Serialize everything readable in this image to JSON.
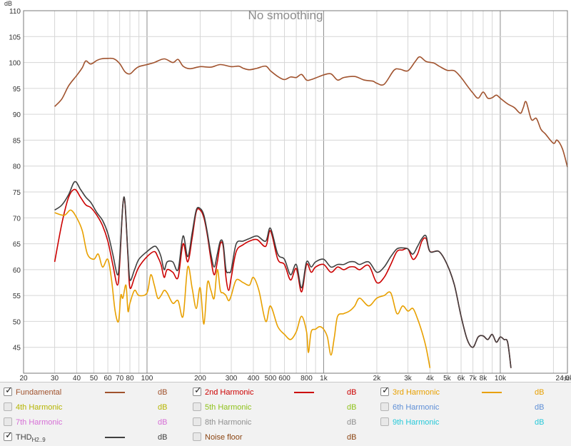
{
  "chart_data": {
    "type": "line",
    "title": "No smoothing",
    "y_unit": "dB",
    "x_unit": "Hz",
    "x_scale": "log",
    "xlim": [
      20,
      24000
    ],
    "ylim": [
      40,
      110
    ],
    "grid": true,
    "x_ticks": [
      {
        "value": 20,
        "label": "20"
      },
      {
        "value": 30,
        "label": "30"
      },
      {
        "value": 40,
        "label": "40"
      },
      {
        "value": 50,
        "label": "50"
      },
      {
        "value": 60,
        "label": "60"
      },
      {
        "value": 70,
        "label": "70"
      },
      {
        "value": 80,
        "label": "80"
      },
      {
        "value": 100,
        "label": "100"
      },
      {
        "value": 200,
        "label": "200"
      },
      {
        "value": 300,
        "label": "300"
      },
      {
        "value": 400,
        "label": "400"
      },
      {
        "value": 500,
        "label": "500"
      },
      {
        "value": 600,
        "label": "600"
      },
      {
        "value": 800,
        "label": "800"
      },
      {
        "value": 1000,
        "label": "1k"
      },
      {
        "value": 2000,
        "label": "2k"
      },
      {
        "value": 3000,
        "label": "3k"
      },
      {
        "value": 4000,
        "label": "4k"
      },
      {
        "value": 5000,
        "label": "5k"
      },
      {
        "value": 6000,
        "label": "6k"
      },
      {
        "value": 7000,
        "label": "7k"
      },
      {
        "value": 8000,
        "label": "8k"
      },
      {
        "value": 10000,
        "label": "10k"
      },
      {
        "value": 24000,
        "label": "24,0k"
      }
    ],
    "y_ticks": [
      45,
      50,
      55,
      60,
      65,
      70,
      75,
      80,
      85,
      90,
      95,
      100,
      105,
      110
    ],
    "series": [
      {
        "name": "Fundamental",
        "color": "#a0522d",
        "x": [
          30,
          33,
          36,
          40,
          43,
          45,
          48,
          52,
          55,
          60,
          65,
          70,
          75,
          80,
          85,
          90,
          100,
          110,
          125,
          140,
          150,
          160,
          175,
          200,
          230,
          260,
          300,
          330,
          350,
          380,
          420,
          470,
          500,
          550,
          600,
          650,
          700,
          750,
          800,
          850,
          900,
          1000,
          1100,
          1200,
          1300,
          1500,
          1700,
          1900,
          2000,
          2200,
          2500,
          2700,
          3000,
          3300,
          3500,
          3800,
          4200,
          4500,
          5000,
          5500,
          6000,
          6500,
          7000,
          7500,
          8000,
          8500,
          9000,
          9500,
          10000,
          11000,
          12000,
          13000,
          13500,
          14000,
          15000,
          16000,
          17000,
          18000,
          20000,
          21000,
          22500,
          24000
        ],
        "values": [
          91.5,
          93,
          95.5,
          97.5,
          99,
          100.3,
          99.7,
          100.4,
          100.7,
          100.8,
          100.7,
          99.8,
          98.2,
          97.8,
          98.6,
          99.2,
          99.6,
          100,
          100.7,
          100,
          100.6,
          99.3,
          98.8,
          99.2,
          99.1,
          99.6,
          99.2,
          99.3,
          98.9,
          98.6,
          98.9,
          99.3,
          98.4,
          97.3,
          96.7,
          97.2,
          97.1,
          97.7,
          96.6,
          96.7,
          97,
          97.6,
          97.8,
          96.6,
          97.1,
          97.3,
          96.6,
          96.4,
          96,
          95.8,
          98.5,
          98.7,
          98.4,
          100.2,
          101.1,
          100.2,
          99.9,
          99.3,
          98.5,
          98.4,
          97.1,
          95.5,
          94.1,
          93.1,
          94.3,
          93.1,
          93.2,
          93.7,
          93.1,
          92,
          91.3,
          90.2,
          91.3,
          92.4,
          89,
          89.2,
          87.1,
          86.2,
          84.4,
          85,
          83.3,
          79.8
        ]
      },
      {
        "name": "2nd Harmonic",
        "color": "#cc0000",
        "x": [
          30,
          33,
          36,
          39,
          42,
          45,
          48,
          52,
          56,
          60,
          64,
          68,
          70,
          73,
          75,
          78,
          80,
          85,
          90,
          100,
          110,
          115,
          120,
          125,
          130,
          140,
          150,
          160,
          170,
          180,
          190,
          200,
          210,
          220,
          230,
          240,
          250,
          260,
          270,
          280,
          290,
          300,
          320,
          350,
          380,
          420,
          470,
          500,
          550,
          600,
          650,
          700,
          750,
          800,
          850,
          900,
          1000,
          1100,
          1200,
          1300,
          1400,
          1500,
          1600,
          1800,
          2000,
          2200,
          2400,
          2600,
          2800,
          3000,
          3200,
          3400,
          3600,
          3800,
          4000,
          4500,
          5000,
          5500,
          6000,
          6500,
          7000,
          7500,
          8000,
          8500,
          9000,
          9500,
          10000,
          10500,
          11000,
          11500
        ],
        "values": [
          61.5,
          69,
          74,
          75.5,
          74,
          72.5,
          72,
          70.5,
          68.5,
          65.5,
          61,
          57,
          61,
          72.5,
          72.8,
          62.5,
          56.5,
          58.5,
          60.5,
          62.5,
          63.5,
          62.5,
          61,
          58.5,
          60,
          59.5,
          58.5,
          65,
          61.5,
          66,
          71.2,
          71.5,
          70,
          66.5,
          62,
          59,
          61.5,
          65,
          64.5,
          58.5,
          56,
          58.5,
          63.5,
          64.8,
          65.5,
          65.8,
          64.5,
          67.5,
          62,
          61,
          58,
          60.2,
          55.7,
          61,
          59.5,
          60.5,
          61,
          59.5,
          60.5,
          60,
          60.5,
          60.5,
          60,
          60.8,
          57.5,
          58.5,
          61,
          63.5,
          63.8,
          64,
          62,
          63,
          65.5,
          66,
          63.5,
          63.5,
          61,
          57,
          51,
          46.5,
          45,
          47,
          47.2,
          46.5,
          47.5,
          46,
          47,
          46.5,
          46,
          41
        ]
      },
      {
        "name": "3rd Harmonic",
        "color": "#e8a000",
        "x": [
          30,
          34,
          37,
          40,
          43,
          46,
          50,
          53,
          56,
          60,
          63,
          66,
          69,
          71,
          73,
          76,
          78,
          80,
          85,
          90,
          100,
          105,
          110,
          115,
          120,
          125,
          130,
          140,
          150,
          160,
          170,
          180,
          190,
          200,
          210,
          220,
          230,
          240,
          250,
          260,
          270,
          280,
          290,
          300,
          320,
          350,
          380,
          400,
          430,
          470,
          500,
          550,
          600,
          650,
          700,
          750,
          800,
          820,
          850,
          900,
          950,
          1000,
          1050,
          1100,
          1150,
          1200,
          1300,
          1400,
          1500,
          1600,
          1800,
          2000,
          2200,
          2400,
          2600,
          2800,
          3000,
          3200,
          3400,
          3600,
          3800,
          4000
        ],
        "values": [
          71,
          70.5,
          71.5,
          70,
          67.5,
          63,
          62,
          63,
          60.5,
          62,
          58,
          52,
          50,
          55,
          54.5,
          57,
          52,
          53.5,
          56,
          55,
          55.5,
          59,
          57,
          54.5,
          55,
          56,
          55.5,
          53.5,
          54,
          51,
          60.5,
          56.5,
          52.5,
          56.5,
          49.5,
          57.5,
          56,
          54.5,
          60,
          56,
          55.5,
          55,
          54,
          55,
          58,
          57.5,
          57,
          58.5,
          56,
          50,
          53,
          49,
          47.5,
          46.5,
          48,
          51,
          48,
          44,
          48,
          48.5,
          49,
          48.5,
          47,
          43.5,
          47,
          51,
          51.5,
          52,
          53,
          54.5,
          53,
          54.5,
          55,
          55.5,
          51.5,
          53,
          52,
          52.5,
          50.5,
          48,
          45,
          41
        ]
      },
      {
        "name": "THD",
        "color": "#404040",
        "x": [
          30,
          33,
          36,
          39,
          42,
          45,
          48,
          52,
          56,
          60,
          64,
          68,
          70,
          73,
          75,
          78,
          80,
          85,
          90,
          100,
          110,
          115,
          120,
          125,
          130,
          140,
          150,
          160,
          170,
          180,
          190,
          200,
          210,
          220,
          230,
          240,
          250,
          260,
          270,
          280,
          290,
          300,
          320,
          350,
          380,
          420,
          470,
          500,
          550,
          600,
          650,
          700,
          750,
          800,
          850,
          900,
          1000,
          1100,
          1200,
          1300,
          1400,
          1500,
          1600,
          1800,
          2000,
          2200,
          2400,
          2600,
          2800,
          3000,
          3200,
          3400,
          3600,
          3800,
          4000,
          4500,
          5000,
          5500,
          6000,
          6500,
          7000,
          7500,
          8000,
          8500,
          9000,
          9500,
          10000,
          10500,
          11000,
          11500
        ],
        "values": [
          71.5,
          72.5,
          74.5,
          77,
          75.5,
          74,
          73,
          71,
          69.5,
          67,
          63,
          59,
          62,
          72.5,
          73,
          63,
          58,
          60,
          62,
          63.5,
          64.5,
          64,
          62.5,
          60,
          61.5,
          61.5,
          60,
          66.5,
          62.5,
          67,
          71.5,
          71.8,
          70.5,
          67,
          63,
          60.5,
          63,
          65.5,
          65,
          60,
          59.5,
          60,
          65,
          65.5,
          66,
          66.5,
          65.5,
          68,
          63,
          62,
          59,
          61,
          56.5,
          61.5,
          60.5,
          61.5,
          62,
          60.5,
          61,
          61,
          61.5,
          61.5,
          61,
          61.5,
          59.5,
          60.5,
          62.5,
          64,
          64.2,
          64,
          63,
          64.5,
          66,
          66.5,
          63.5,
          63.5,
          61,
          57,
          51,
          46.5,
          45,
          47,
          47.2,
          46.5,
          47.5,
          46,
          47,
          46.5,
          46,
          41
        ]
      }
    ]
  },
  "legend": {
    "unit": "dB",
    "items": [
      {
        "label": "Fundamental",
        "checked": true,
        "color": "#a0522d",
        "has_swatch": true
      },
      {
        "label": "2nd Harmonic",
        "checked": true,
        "color": "#cc0000",
        "has_swatch": true
      },
      {
        "label": "3rd Harmonic",
        "checked": true,
        "color": "#e8a000",
        "has_swatch": true
      },
      {
        "label": "4th Harmonic",
        "checked": false,
        "color": "#b5b500",
        "has_swatch": false
      },
      {
        "label": "5th Harmonic",
        "checked": false,
        "color": "#8fc21a",
        "has_swatch": false
      },
      {
        "label": "6th Harmonic",
        "checked": false,
        "color": "#5f8fd6",
        "has_swatch": false
      },
      {
        "label": "7th Harmonic",
        "checked": false,
        "color": "#d66fd6",
        "has_swatch": false
      },
      {
        "label": "8th Harmonic",
        "checked": false,
        "color": "#909090",
        "has_swatch": false
      },
      {
        "label": "9th Harmonic",
        "checked": false,
        "color": "#26c9d9",
        "has_swatch": false
      },
      {
        "label": "THD",
        "label_sub": "H2..9",
        "checked": true,
        "color": "#404040",
        "has_swatch": true
      },
      {
        "label": "Noise floor",
        "checked": false,
        "color": "#8b4513",
        "has_swatch": false
      }
    ]
  }
}
